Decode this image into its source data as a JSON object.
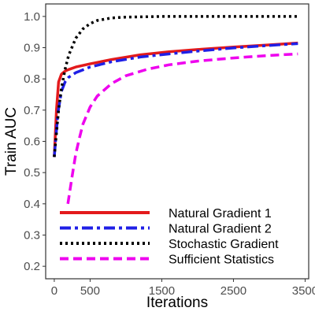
{
  "chart_data": {
    "type": "line",
    "xlabel": "Iterations",
    "ylabel": "Train AUC",
    "xlim": [
      -120,
      3550
    ],
    "ylim": [
      0.16,
      1.04
    ],
    "x_ticks": [
      0,
      500,
      1500,
      2500,
      3500
    ],
    "x_tick_labels": [
      "0",
      "500",
      "1500",
      "2500",
      "3500"
    ],
    "y_ticks": [
      0.2,
      0.3,
      0.4,
      0.5,
      0.6,
      0.7,
      0.8,
      0.9,
      1.0
    ],
    "y_tick_labels": [
      "0.2",
      "0.3",
      "0.4",
      "0.5",
      "0.6",
      "0.7",
      "0.8",
      "0.9",
      "1.0"
    ],
    "grid": false,
    "legend_position": "bottom-left",
    "series": [
      {
        "name": "Natural Gradient 1",
        "color": "#e31a1c",
        "dash": "solid",
        "x": [
          0,
          30,
          60,
          100,
          150,
          200,
          300,
          500,
          800,
          1200,
          1600,
          2000,
          2500,
          3000,
          3400
        ],
        "y": [
          0.55,
          0.7,
          0.79,
          0.815,
          0.825,
          0.83,
          0.838,
          0.848,
          0.862,
          0.877,
          0.887,
          0.894,
          0.902,
          0.909,
          0.915
        ]
      },
      {
        "name": "Natural Gradient 2",
        "color": "#1f1fe6",
        "dash": "dashdot",
        "x": [
          0,
          50,
          100,
          150,
          200,
          300,
          500,
          800,
          1200,
          1600,
          2000,
          2500,
          3000,
          3400
        ],
        "y": [
          0.55,
          0.69,
          0.76,
          0.79,
          0.805,
          0.82,
          0.838,
          0.855,
          0.87,
          0.88,
          0.889,
          0.899,
          0.907,
          0.913
        ]
      },
      {
        "name": "Stochastic Gradient",
        "color": "#000000",
        "dash": "dotted",
        "x": [
          0,
          60,
          100,
          150,
          200,
          300,
          400,
          500,
          600,
          800,
          1000,
          1500,
          2000,
          3400
        ],
        "y": [
          0.55,
          0.7,
          0.77,
          0.83,
          0.875,
          0.93,
          0.96,
          0.977,
          0.987,
          0.995,
          0.998,
          1.0,
          1.0,
          1.0
        ]
      },
      {
        "name": "Sufficient Statistics",
        "color": "#ee00ee",
        "dash": "dashed",
        "x": [
          190,
          250,
          300,
          350,
          400,
          500,
          600,
          800,
          1000,
          1300,
          1600,
          2000,
          2500,
          3000,
          3400
        ],
        "y": [
          0.4,
          0.49,
          0.56,
          0.61,
          0.655,
          0.71,
          0.745,
          0.785,
          0.81,
          0.831,
          0.845,
          0.857,
          0.867,
          0.875,
          0.88
        ]
      }
    ]
  }
}
